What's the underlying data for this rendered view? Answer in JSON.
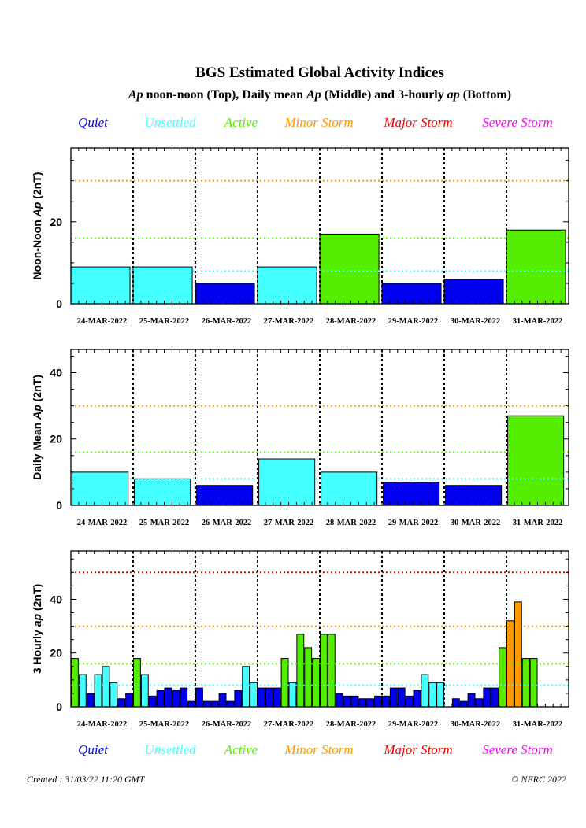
{
  "title": "BGS Estimated Global Activity Indices",
  "subtitle_parts": [
    {
      "text": "Ap",
      "italic": true
    },
    {
      "text": " noon-noon (Top), Daily mean ",
      "italic": false
    },
    {
      "text": "Ap",
      "italic": true
    },
    {
      "text": " (Middle) and 3-hourly ",
      "italic": false
    },
    {
      "text": "ap",
      "italic": true
    },
    {
      "text": " (Bottom)",
      "italic": false
    }
  ],
  "legend": [
    {
      "label": "Quiet",
      "color": "#0000ee"
    },
    {
      "label": "Unsettled",
      "color": "#44ffff"
    },
    {
      "label": "Active",
      "color": "#55ee00"
    },
    {
      "label": "Minor Storm",
      "color": "#ff9900"
    },
    {
      "label": "Major Storm",
      "color": "#ee0000"
    },
    {
      "label": "Severe Storm",
      "color": "#ff00ff"
    }
  ],
  "bar_colors": {
    "quiet": "#0000ee",
    "unsettled": "#44ffff",
    "active": "#55ee00",
    "minor": "#ff9900"
  },
  "threshold_colors": {
    "8": "#44ffff",
    "16": "#55ee00",
    "30": "#ff9900",
    "50": "#ee0000"
  },
  "created": "Created : 31/03/22 11:20 GMT",
  "copyright": "© NERC 2022",
  "chart_data": [
    {
      "type": "bar",
      "ylabel_parts": [
        {
          "text": "Noon-Noon ",
          "italic": false
        },
        {
          "text": "Ap",
          "italic": true
        },
        {
          "text": " (2nT)",
          "italic": false
        }
      ],
      "ylim": [
        0,
        38
      ],
      "yticks": [
        0,
        20
      ],
      "thresholds": [
        8,
        16,
        30
      ],
      "categories": [
        "24-MAR-2022",
        "25-MAR-2022",
        "26-MAR-2022",
        "27-MAR-2022",
        "28-MAR-2022",
        "29-MAR-2022",
        "30-MAR-2022",
        "31-MAR-2022"
      ],
      "bars": [
        {
          "x0": -0.5,
          "x1": 0.45,
          "value": 9,
          "level": "unsettled"
        },
        {
          "x0": 0.5,
          "x1": 1.45,
          "value": 9,
          "level": "unsettled"
        },
        {
          "x0": 1.5,
          "x1": 2.45,
          "value": 5,
          "level": "quiet"
        },
        {
          "x0": 2.5,
          "x1": 3.45,
          "value": 9,
          "level": "unsettled"
        },
        {
          "x0": 3.5,
          "x1": 4.45,
          "value": 17,
          "level": "active"
        },
        {
          "x0": 4.5,
          "x1": 5.45,
          "value": 5,
          "level": "quiet"
        },
        {
          "x0": 5.5,
          "x1": 6.45,
          "value": 6,
          "level": "quiet"
        },
        {
          "x0": 6.5,
          "x1": 7.45,
          "value": 18,
          "level": "active"
        }
      ]
    },
    {
      "type": "bar",
      "ylabel_parts": [
        {
          "text": "Daily Mean ",
          "italic": false
        },
        {
          "text": "Ap",
          "italic": true
        },
        {
          "text": " (2nT)",
          "italic": false
        }
      ],
      "ylim": [
        0,
        47
      ],
      "yticks": [
        0,
        20,
        40
      ],
      "thresholds": [
        8,
        16,
        30
      ],
      "categories": [
        "24-MAR-2022",
        "25-MAR-2022",
        "26-MAR-2022",
        "27-MAR-2022",
        "28-MAR-2022",
        "29-MAR-2022",
        "30-MAR-2022",
        "31-MAR-2022"
      ],
      "bars": [
        {
          "x0": 0.02,
          "x1": 0.92,
          "value": 10,
          "level": "unsettled"
        },
        {
          "x0": 1.02,
          "x1": 1.92,
          "value": 8,
          "level": "unsettled"
        },
        {
          "x0": 2.02,
          "x1": 2.92,
          "value": 6,
          "level": "quiet"
        },
        {
          "x0": 3.02,
          "x1": 3.92,
          "value": 14,
          "level": "unsettled"
        },
        {
          "x0": 4.02,
          "x1": 4.92,
          "value": 10,
          "level": "unsettled"
        },
        {
          "x0": 5.02,
          "x1": 5.92,
          "value": 7,
          "level": "quiet"
        },
        {
          "x0": 6.02,
          "x1": 6.92,
          "value": 6,
          "level": "quiet"
        },
        {
          "x0": 7.02,
          "x1": 7.92,
          "value": 27,
          "level": "active"
        }
      ]
    },
    {
      "type": "bar",
      "ylabel_parts": [
        {
          "text": "3 Hourly ",
          "italic": false
        },
        {
          "text": "ap",
          "italic": true
        },
        {
          "text": " (2nT)",
          "italic": false
        }
      ],
      "ylim": [
        0,
        58
      ],
      "yticks": [
        0,
        20,
        40
      ],
      "thresholds": [
        8,
        16,
        30,
        50
      ],
      "categories": [
        "24-MAR-2022",
        "25-MAR-2022",
        "26-MAR-2022",
        "27-MAR-2022",
        "28-MAR-2022",
        "29-MAR-2022",
        "30-MAR-2022",
        "31-MAR-2022"
      ],
      "three_hourly": [
        18,
        12,
        5,
        12,
        15,
        9,
        3,
        5,
        18,
        12,
        4,
        6,
        7,
        6,
        7,
        2,
        7,
        2,
        2,
        5,
        2,
        6,
        15,
        9,
        7,
        7,
        7,
        18,
        9,
        27,
        22,
        18,
        27,
        27,
        5,
        4,
        4,
        3,
        3,
        4,
        4,
        7,
        7,
        4,
        6,
        12,
        9,
        9,
        null,
        3,
        2,
        5,
        3,
        7,
        7,
        22,
        32,
        39,
        18,
        18,
        null,
        null,
        null,
        null
      ]
    }
  ]
}
